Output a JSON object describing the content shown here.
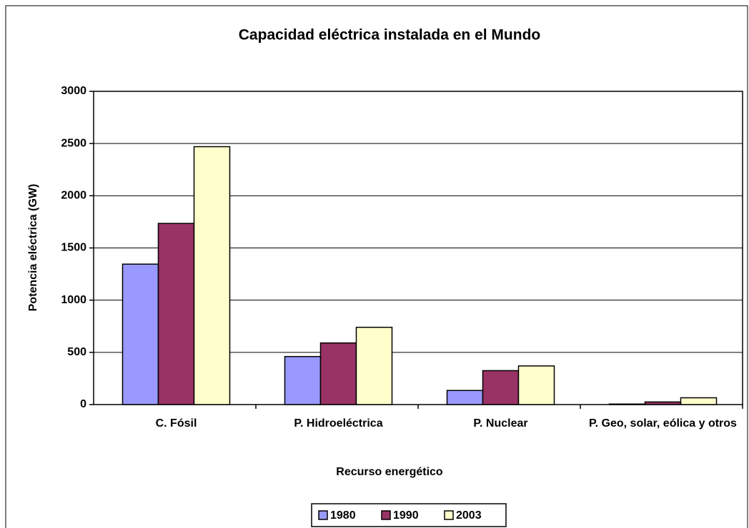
{
  "chart_data": {
    "type": "bar",
    "title": "Capacidad eléctrica instalada en el Mundo",
    "x_label": "Recurso energético",
    "y_label": "Potencia eléctrica (GW)",
    "categories": [
      "C. Fósil",
      "P. Hidroeléctrica",
      "P. Nuclear",
      "P. Geo, solar, eólica y otros"
    ],
    "series": [
      {
        "name": "1980",
        "color": "#9999ff",
        "values": [
          1345,
          460,
          135,
          5
        ]
      },
      {
        "name": "1990",
        "color": "#993366",
        "values": [
          1735,
          590,
          325,
          25
        ]
      },
      {
        "name": "2003",
        "color": "#ffffcc",
        "values": [
          2470,
          740,
          370,
          65
        ]
      }
    ],
    "ylim": [
      0,
      3000
    ],
    "yticks": [
      0,
      500,
      1000,
      1500,
      2000,
      2500,
      3000
    ],
    "grid": true,
    "legend": "bottom"
  }
}
